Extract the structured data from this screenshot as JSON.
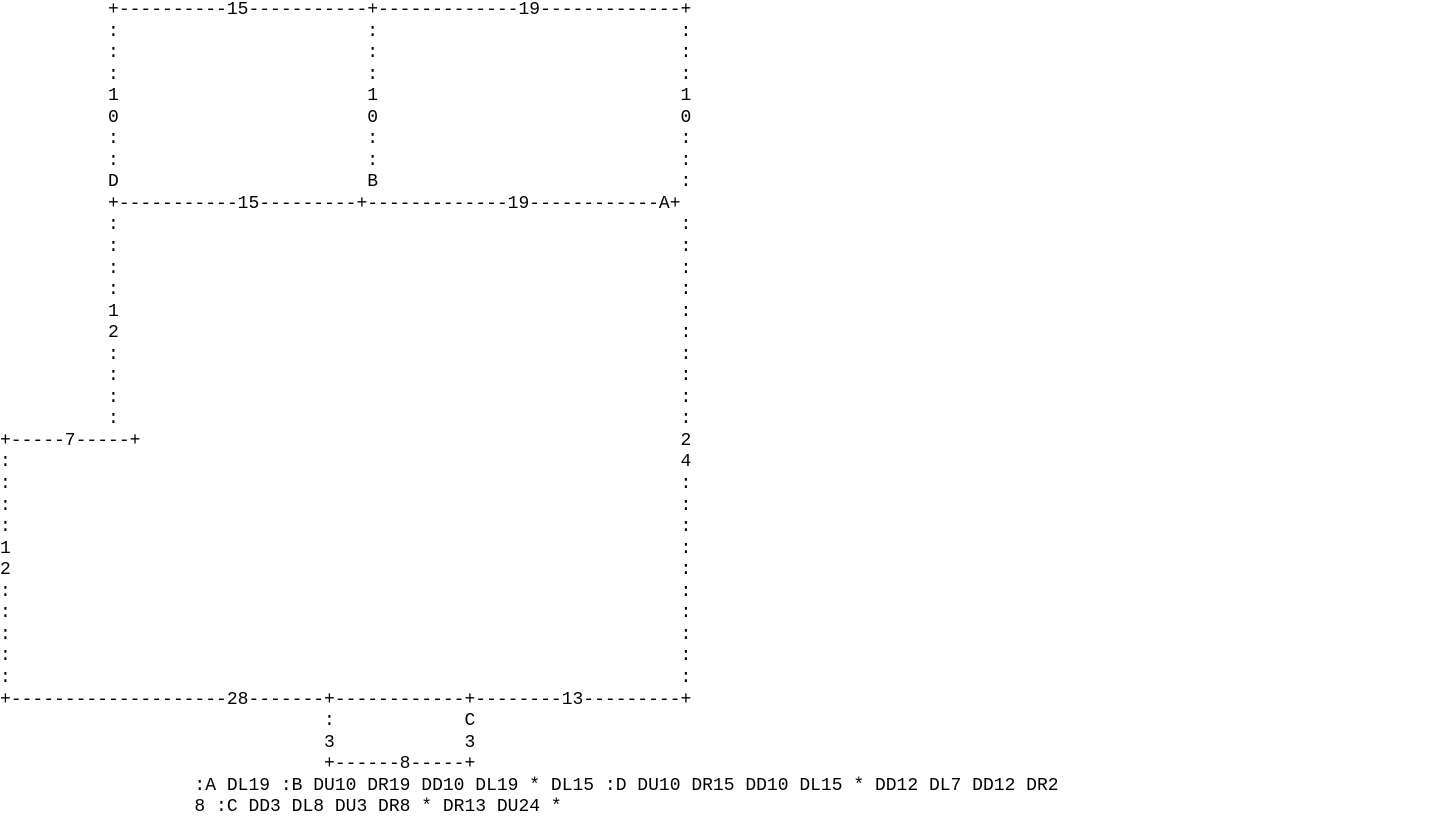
{
  "diagram": {
    "lines": [
      "          +----------15-----------+-------------19-------------+",
      "          :                       :                            :",
      "          :                       :                            :",
      "          :                       :                            :",
      "          1                       1                            1",
      "          0                       0                            0",
      "          :                       :                            :",
      "          :                       :                            :",
      "          D                       B                            :",
      "          +-----------15---------+-------------19------------A+",
      "          :                                                    :",
      "          :                                                    :",
      "          :                                                    :",
      "          :                                                    :",
      "          1                                                    :",
      "          2                                                    :",
      "          :                                                    :",
      "          :                                                    :",
      "          :                                                    :",
      "          :                                                    :",
      "+-----7-----+                                                  2",
      ":                                                              4",
      ":                                                              :",
      ":                                                              :",
      ":                                                              :",
      "1                                                              :",
      "2                                                              :",
      ":                                                              :",
      ":                                                              :",
      ":                                                              :",
      ":                                                              :",
      ":                                                              :",
      "+--------------------28-------+------------+--------13---------+",
      "                              :            C",
      "                              3            3",
      "                              +------8-----+",
      "                  :A DL19 :B DU10 DR19 DD10 DL19 * DL15 :D DU10 DR15 DD10 DL15 * DD12 DL7 DD12 DR2",
      "                  8 :C DD3 DL8 DU3 DR8 * DR13 DU24 *"
    ]
  }
}
